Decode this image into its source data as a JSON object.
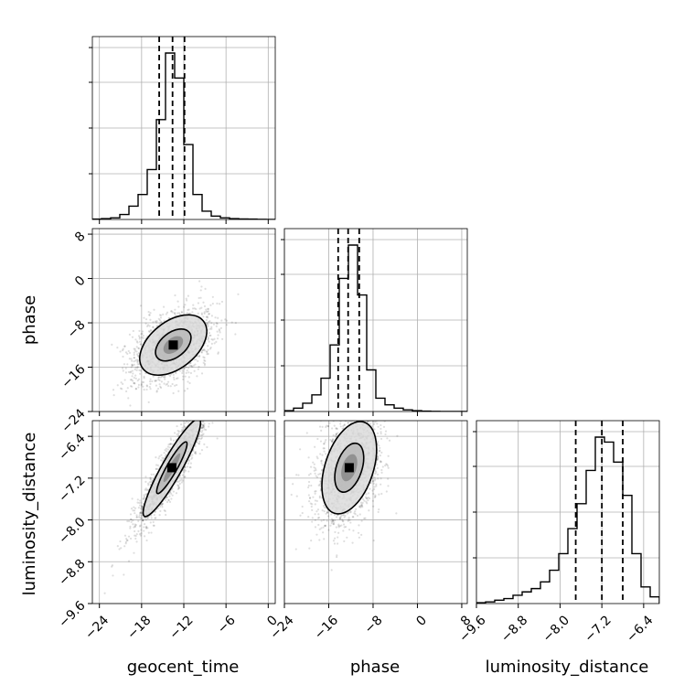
{
  "chart_data": {
    "type": "corner",
    "parameters": [
      "geocent_time",
      "phase",
      "luminosity_distance"
    ],
    "xlabels": [
      "geocent_time",
      "phase",
      "luminosity_distance"
    ],
    "ylabels": [
      "",
      "phase",
      "luminosity_distance"
    ],
    "ranges": {
      "geocent_time": [
        -25,
        1
      ],
      "phase": [
        -24,
        9
      ],
      "luminosity_distance": [
        -9.6,
        -6.1
      ]
    },
    "ticks": {
      "geocent_time": [
        -24,
        -18,
        -12,
        -6,
        0
      ],
      "phase": [
        -24,
        -16,
        -8,
        0,
        8
      ],
      "luminosity_distance": [
        -9.6,
        -8.8,
        -8.0,
        -7.2,
        -6.4
      ]
    },
    "tick_labels": {
      "geocent_time": [
        "−24",
        "−18",
        "−12",
        "−6",
        "0"
      ],
      "phase": [
        "−24",
        "−16",
        "−8",
        "0",
        "8"
      ],
      "luminosity_distance": [
        "−9.6",
        "−8.8",
        "−8.0",
        "−7.2",
        "−6.4"
      ]
    },
    "histograms": {
      "geocent_time": {
        "edges": [
          -25,
          -23.7,
          -22.4,
          -21.1,
          -19.8,
          -18.5,
          -17.2,
          -15.9,
          -14.6,
          -13.3,
          -12,
          -10.7,
          -9.4,
          -8.1,
          -6.8,
          -5.5,
          -4.2,
          -2.9,
          -1.6,
          -0.3,
          1
        ],
        "counts": [
          0.2,
          0.5,
          1,
          3,
          8,
          15,
          30,
          60,
          100,
          85,
          45,
          15,
          5,
          2,
          1,
          0.5,
          0.3,
          0.2,
          0.1,
          0.05
        ],
        "quantiles": [
          -15.5,
          -13.6,
          -11.9
        ]
      },
      "phase": {
        "edges": [
          -24,
          -22.35,
          -20.7,
          -19.05,
          -17.4,
          -15.75,
          -14.1,
          -12.45,
          -10.8,
          -9.15,
          -7.5,
          -5.85,
          -4.2,
          -2.55,
          -0.9,
          0.75,
          2.4,
          4.05,
          5.7,
          7.35,
          9
        ],
        "counts": [
          0.5,
          2,
          5,
          10,
          20,
          40,
          80,
          100,
          70,
          25,
          8,
          4,
          2,
          1,
          0.5,
          0.2,
          0.1,
          0.05,
          0.02,
          0.01
        ],
        "quantiles": [
          -14.3,
          -12.5,
          -10.5
        ]
      },
      "luminosity_distance": {
        "edges": [
          -9.6,
          -9.425,
          -9.25,
          -9.075,
          -8.9,
          -8.725,
          -8.55,
          -8.375,
          -8.2,
          -8.025,
          -7.85,
          -7.675,
          -7.5,
          -7.325,
          -7.15,
          -6.975,
          -6.8,
          -6.625,
          -6.45,
          -6.275,
          -6.1
        ],
        "counts": [
          0.5,
          1,
          2,
          3,
          5,
          7,
          9,
          13,
          20,
          30,
          45,
          60,
          80,
          100,
          97,
          85,
          65,
          30,
          10,
          4
        ],
        "quantiles": [
          -7.7,
          -7.2,
          -6.8
        ]
      }
    },
    "scatter_2d": [
      {
        "x": "geocent_time",
        "y": "phase",
        "center": [
          -13.5,
          -12
        ],
        "sd": [
          2.8,
          3.2
        ],
        "rho": 0.45,
        "levels": [
          0.5,
          0.9,
          1.7
        ]
      },
      {
        "x": "geocent_time",
        "y": "luminosity_distance",
        "center": [
          -13.7,
          -7.0
        ],
        "sd": [
          2.4,
          0.55
        ],
        "rho": 0.92,
        "levels": [
          0.5,
          0.9,
          1.7
        ]
      },
      {
        "x": "phase",
        "y": "luminosity_distance",
        "center": [
          -12.3,
          -7.0
        ],
        "sd": [
          2.9,
          0.52
        ],
        "rho": 0.4,
        "levels": [
          0.5,
          0.9,
          1.7
        ]
      }
    ],
    "grid": true
  }
}
